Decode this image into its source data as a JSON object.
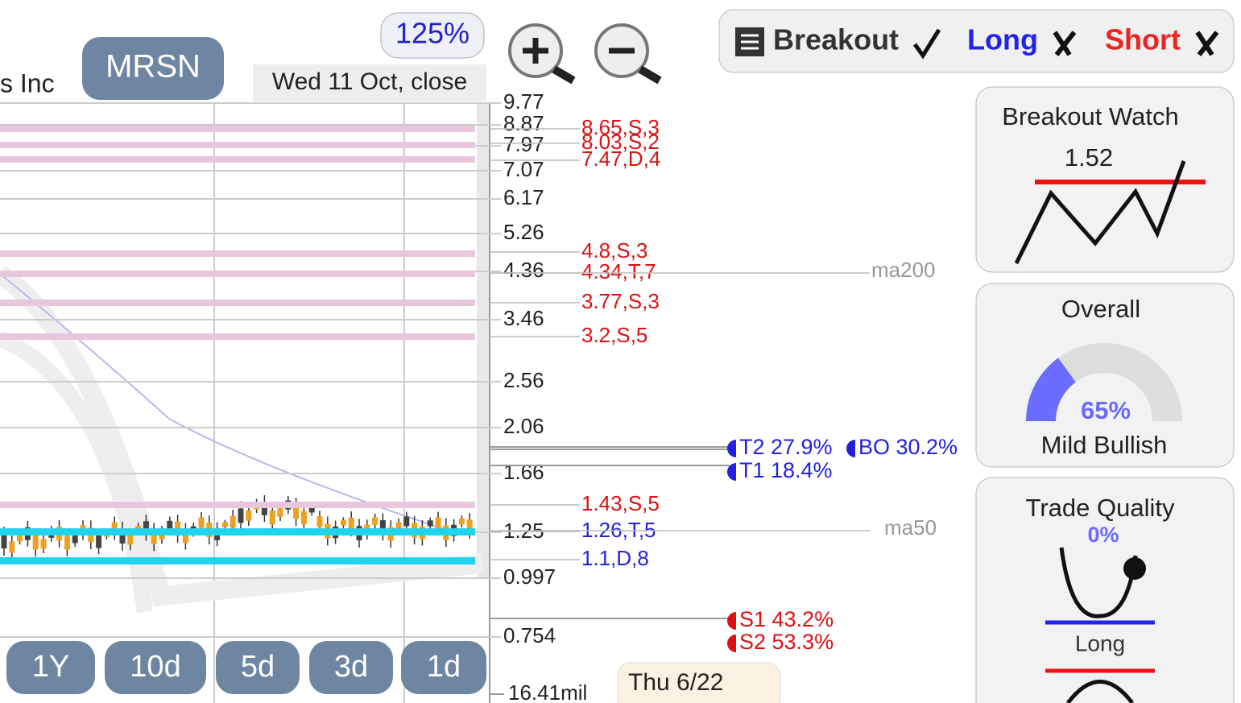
{
  "header": {
    "company_fragment": "s Inc",
    "ticker": "MRSN",
    "zoom": "125%",
    "date": "Wed 11 Oct, close"
  },
  "price_axis": [
    "9.77",
    "8.87",
    "7.97",
    "7.07",
    "6.17",
    "5.26",
    "4.36",
    "3.46",
    "2.56",
    "2.06",
    "1.66",
    "1.25",
    "0.997",
    "0.754"
  ],
  "levels": [
    {
      "label": "8.65,S,3",
      "color": "#dd1111"
    },
    {
      "label": "8.03,S,2",
      "color": "#dd1111"
    },
    {
      "label": "7.47,D,4",
      "color": "#dd1111"
    },
    {
      "label": "4.8,S,3",
      "color": "#dd1111"
    },
    {
      "label": "4.34,T,7",
      "color": "#dd1111"
    },
    {
      "label": "3.77,S,3",
      "color": "#dd1111"
    },
    {
      "label": "3.2,S,5",
      "color": "#dd1111"
    },
    {
      "label": "1.43,S,5",
      "color": "#dd1111"
    },
    {
      "label": "1.26,T,5",
      "color": "#2222dd"
    },
    {
      "label": "1.1,D,8",
      "color": "#2222dd"
    }
  ],
  "moving_averages": [
    "ma200",
    "ma50"
  ],
  "targets": [
    {
      "label": "T2 27.9%",
      "color": "#2222dd"
    },
    {
      "label": "BO 30.2%",
      "color": "#2222dd"
    },
    {
      "label": "T1 18.4%",
      "color": "#2222dd"
    },
    {
      "label": "S1 43.2%",
      "color": "#dd1111"
    },
    {
      "label": "S2 53.3%",
      "color": "#dd1111"
    }
  ],
  "periods": [
    "1Y",
    "10d",
    "5d",
    "3d",
    "1d"
  ],
  "volume": "16.41mil",
  "tooltip": "Thu 6/22",
  "status": {
    "breakout": "Breakout",
    "long": "Long",
    "short": "Short"
  },
  "cards": {
    "breakout_watch": {
      "title": "Breakout Watch",
      "value": "1.52"
    },
    "overall": {
      "title": "Overall",
      "value": 65,
      "value_label": "65%",
      "label": "Mild Bullish"
    },
    "trade_quality": {
      "title": "Trade Quality",
      "value": "0%",
      "label": "Long"
    }
  }
}
